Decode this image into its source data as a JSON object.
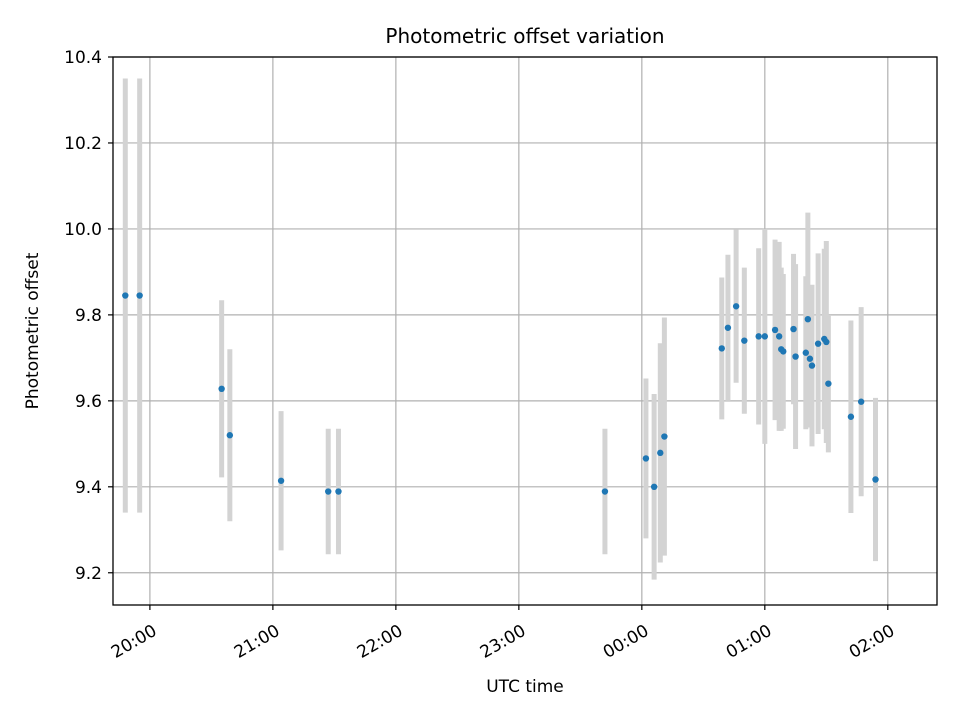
{
  "chart_data": {
    "type": "scatter",
    "title": "Photometric offset variation",
    "xlabel": "UTC time",
    "ylabel": "Photometric offset",
    "grid": true,
    "x_ticks": [
      "20:00",
      "21:00",
      "22:00",
      "23:00",
      "00:00",
      "01:00",
      "02:00"
    ],
    "y_ticks": [
      "9.2",
      "9.4",
      "9.6",
      "9.8",
      "10.0",
      "10.2",
      "10.4"
    ],
    "xlim": [
      "2000-01-01T19:42:00",
      "2000-01-02T02:24:00"
    ],
    "ylim": [
      9.125,
      10.4
    ],
    "point_color": "#1f77b4",
    "errorbar_color": "#d3d3d3",
    "series": [
      {
        "points": [
          {
            "x": "2000-01-01T19:48:00",
            "y": 9.845,
            "err": 0.505
          },
          {
            "x": "2000-01-01T19:55:00",
            "y": 9.845,
            "err": 0.505
          },
          {
            "x": "2000-01-01T20:35:00",
            "y": 9.628,
            "err": 0.206
          },
          {
            "x": "2000-01-01T20:39:00",
            "y": 9.52,
            "err": 0.2
          },
          {
            "x": "2000-01-01T21:04:00",
            "y": 9.414,
            "err": 0.162
          },
          {
            "x": "2000-01-01T21:27:00",
            "y": 9.389,
            "err": 0.146
          },
          {
            "x": "2000-01-01T21:32:00",
            "y": 9.389,
            "err": 0.146
          },
          {
            "x": "2000-01-01T23:42:00",
            "y": 9.389,
            "err": 0.146
          },
          {
            "x": "2000-01-02T00:02:00",
            "y": 9.466,
            "err": 0.186
          },
          {
            "x": "2000-01-02T00:06:00",
            "y": 9.4,
            "err": 0.216
          },
          {
            "x": "2000-01-02T00:09:00",
            "y": 9.479,
            "err": 0.255
          },
          {
            "x": "2000-01-02T00:11:00",
            "y": 9.517,
            "err": 0.277
          },
          {
            "x": "2000-01-02T00:39:00",
            "y": 9.722,
            "err": 0.165
          },
          {
            "x": "2000-01-02T00:42:00",
            "y": 9.77,
            "err": 0.17
          },
          {
            "x": "2000-01-02T00:46:00",
            "y": 9.82,
            "err": 0.178
          },
          {
            "x": "2000-01-02T00:50:00",
            "y": 9.74,
            "err": 0.17
          },
          {
            "x": "2000-01-02T00:57:00",
            "y": 9.75,
            "err": 0.205
          },
          {
            "x": "2000-01-02T01:00:00",
            "y": 9.75,
            "err": 0.25
          },
          {
            "x": "2000-01-02T01:05:00",
            "y": 9.765,
            "err": 0.21
          },
          {
            "x": "2000-01-02T01:07:00",
            "y": 9.75,
            "err": 0.22
          },
          {
            "x": "2000-01-02T01:08:00",
            "y": 9.72,
            "err": 0.19
          },
          {
            "x": "2000-01-02T01:09:00",
            "y": 9.715,
            "err": 0.18
          },
          {
            "x": "2000-01-02T01:14:00",
            "y": 9.767,
            "err": 0.175
          },
          {
            "x": "2000-01-02T01:15:00",
            "y": 9.703,
            "err": 0.215
          },
          {
            "x": "2000-01-02T01:20:00",
            "y": 9.712,
            "err": 0.178
          },
          {
            "x": "2000-01-02T01:21:00",
            "y": 9.79,
            "err": 0.248
          },
          {
            "x": "2000-01-02T01:22:00",
            "y": 9.698,
            "err": 0.16
          },
          {
            "x": "2000-01-02T01:23:00",
            "y": 9.682,
            "err": 0.188
          },
          {
            "x": "2000-01-02T01:26:00",
            "y": 9.733,
            "err": 0.21
          },
          {
            "x": "2000-01-02T01:29:00",
            "y": 9.744,
            "err": 0.21
          },
          {
            "x": "2000-01-02T01:30:00",
            "y": 9.737,
            "err": 0.235
          },
          {
            "x": "2000-01-02T01:31:00",
            "y": 9.64,
            "err": 0.16
          },
          {
            "x": "2000-01-02T01:42:00",
            "y": 9.563,
            "err": 0.224
          },
          {
            "x": "2000-01-02T01:47:00",
            "y": 9.598,
            "err": 0.22
          },
          {
            "x": "2000-01-02T01:54:00",
            "y": 9.417,
            "err": 0.19
          }
        ]
      }
    ]
  }
}
